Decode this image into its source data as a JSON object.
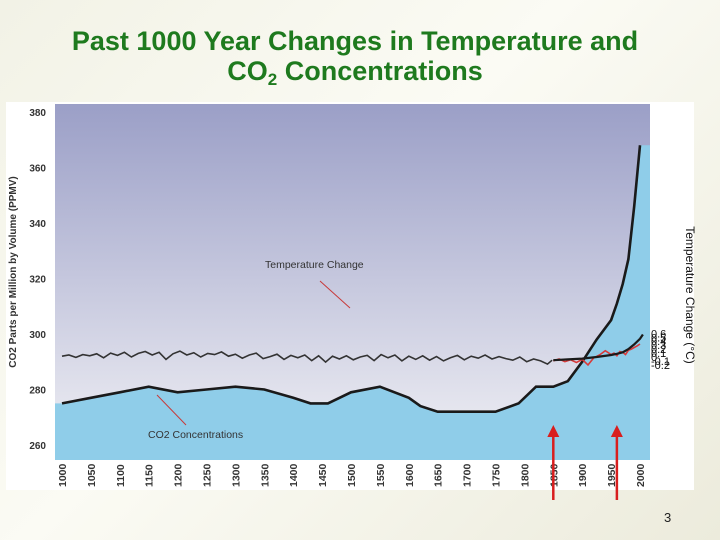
{
  "slide": {
    "title_line1": "Past 1000 Year Changes in Temperature and",
    "title_line2_prefix": "CO",
    "title_line2_sub": "2",
    "title_line2_suffix": " Concentrations",
    "page_number": "3"
  },
  "colors": {
    "title": "#1e7a1e",
    "plot_top": "#9b9fc7",
    "plot_bottom": "#f1f1f5",
    "co2_fill": "#8fcde9",
    "co2_line": "#1a1a1a",
    "temp_line": "#333333",
    "temp_recent": "#d93a3a",
    "arrow": "#d81e1e"
  },
  "chart_data": {
    "type": "line",
    "title": "Past 1000 Year Changes in Temperature and CO2 Concentrations",
    "xlabel": "",
    "ylabel": "CO2 Parts per Million by Volume (PPMV)",
    "y2label": "Temperature Change (°C)",
    "x_ticks": [
      "1000",
      "1050",
      "1100",
      "1150",
      "1200",
      "1250",
      "1300",
      "1350",
      "1400",
      "1450",
      "1500",
      "1550",
      "1600",
      "1650",
      "1700",
      "1750",
      "1800",
      "1850",
      "1900",
      "1950",
      "2000"
    ],
    "y_ticks": [
      "380",
      "360",
      "340",
      "320",
      "300",
      "280",
      "260"
    ],
    "y2_ticks": [
      "0.6",
      "0.5",
      "0.4",
      "0.3",
      "0.2",
      "0.1",
      "0",
      "-0.1",
      "-0.2"
    ],
    "xlim": [
      1000,
      2000
    ],
    "ylim": [
      255,
      381
    ],
    "y2lim": [
      -0.25,
      0.6
    ],
    "annotations": {
      "temperature": "Temperature Change",
      "co2": "CO2 Concentrations"
    },
    "arrow_years": [
      1850,
      1960
    ],
    "series": [
      {
        "name": "CO2 Concentrations",
        "x": [
          1000,
          1050,
          1100,
          1150,
          1200,
          1250,
          1300,
          1350,
          1400,
          1430,
          1460,
          1500,
          1550,
          1600,
          1620,
          1650,
          1700,
          1750,
          1790,
          1820,
          1850,
          1875,
          1900,
          1925,
          1950,
          1960,
          1970,
          1980,
          1990,
          2000
        ],
        "values": [
          275,
          277,
          279,
          281,
          279,
          280,
          281,
          280,
          277,
          275,
          275,
          279,
          281,
          277,
          274,
          272,
          272,
          272,
          275,
          281,
          281,
          283,
          290,
          298,
          305,
          311,
          318,
          327,
          346,
          368
        ]
      },
      {
        "name": "Temperature Change",
        "x": [
          1000,
          1012,
          1024,
          1036,
          1048,
          1060,
          1072,
          1084,
          1096,
          1108,
          1120,
          1132,
          1144,
          1156,
          1168,
          1180,
          1192,
          1204,
          1216,
          1228,
          1240,
          1252,
          1264,
          1276,
          1288,
          1300,
          1312,
          1324,
          1336,
          1348,
          1360,
          1372,
          1384,
          1396,
          1408,
          1420,
          1432,
          1444,
          1456,
          1468,
          1480,
          1492,
          1504,
          1516,
          1528,
          1540,
          1552,
          1564,
          1576,
          1588,
          1600,
          1612,
          1624,
          1636,
          1648,
          1660,
          1672,
          1684,
          1696,
          1708,
          1720,
          1732,
          1744,
          1756,
          1768,
          1780,
          1792,
          1804,
          1816,
          1828,
          1840,
          1848
        ],
        "values": [
          0.02,
          0.05,
          -0.01,
          0.06,
          0.03,
          0.08,
          -0.02,
          0.1,
          0.04,
          0.12,
          0.0,
          0.09,
          0.14,
          0.05,
          0.12,
          -0.06,
          0.08,
          0.15,
          0.05,
          0.11,
          0.0,
          0.09,
          0.06,
          0.13,
          0.02,
          0.07,
          -0.03,
          0.05,
          0.1,
          -0.04,
          0.01,
          0.07,
          -0.06,
          0.04,
          -0.02,
          0.05,
          -0.09,
          0.03,
          -0.13,
          0.02,
          -0.05,
          0.03,
          -0.07,
          0.0,
          0.04,
          -0.09,
          0.06,
          -0.02,
          0.05,
          -0.1,
          0.02,
          -0.06,
          0.03,
          -0.08,
          0.01,
          -0.1,
          -0.02,
          0.04,
          -0.07,
          0.02,
          -0.03,
          0.05,
          -0.05,
          0.01,
          -0.04,
          -0.08,
          0.0,
          -0.12,
          -0.05,
          -0.1,
          -0.18,
          -0.08
        ]
      },
      {
        "name": "Temperature Change (instrumental)",
        "x": [
          1850,
          1860,
          1870,
          1880,
          1890,
          1900,
          1910,
          1920,
          1930,
          1940,
          1950,
          1955,
          1960,
          1965,
          1970,
          1975,
          1980,
          1985,
          1990,
          1995,
          2000
        ],
        "values": [
          -0.1,
          -0.05,
          -0.12,
          -0.07,
          -0.14,
          -0.06,
          -0.2,
          -0.02,
          0.05,
          0.16,
          0.06,
          0.1,
          0.03,
          0.14,
          0.12,
          0.06,
          0.17,
          0.2,
          0.24,
          0.28,
          0.33
        ]
      },
      {
        "name": "Temperature Change (smoothed)",
        "x": [
          1850,
          1875,
          1900,
          1925,
          1950,
          1960,
          1970,
          1980,
          1990,
          2000,
          2005
        ],
        "values": [
          -0.08,
          -0.06,
          -0.04,
          0.0,
          0.05,
          0.08,
          0.12,
          0.2,
          0.32,
          0.46,
          0.57
        ]
      }
    ]
  }
}
